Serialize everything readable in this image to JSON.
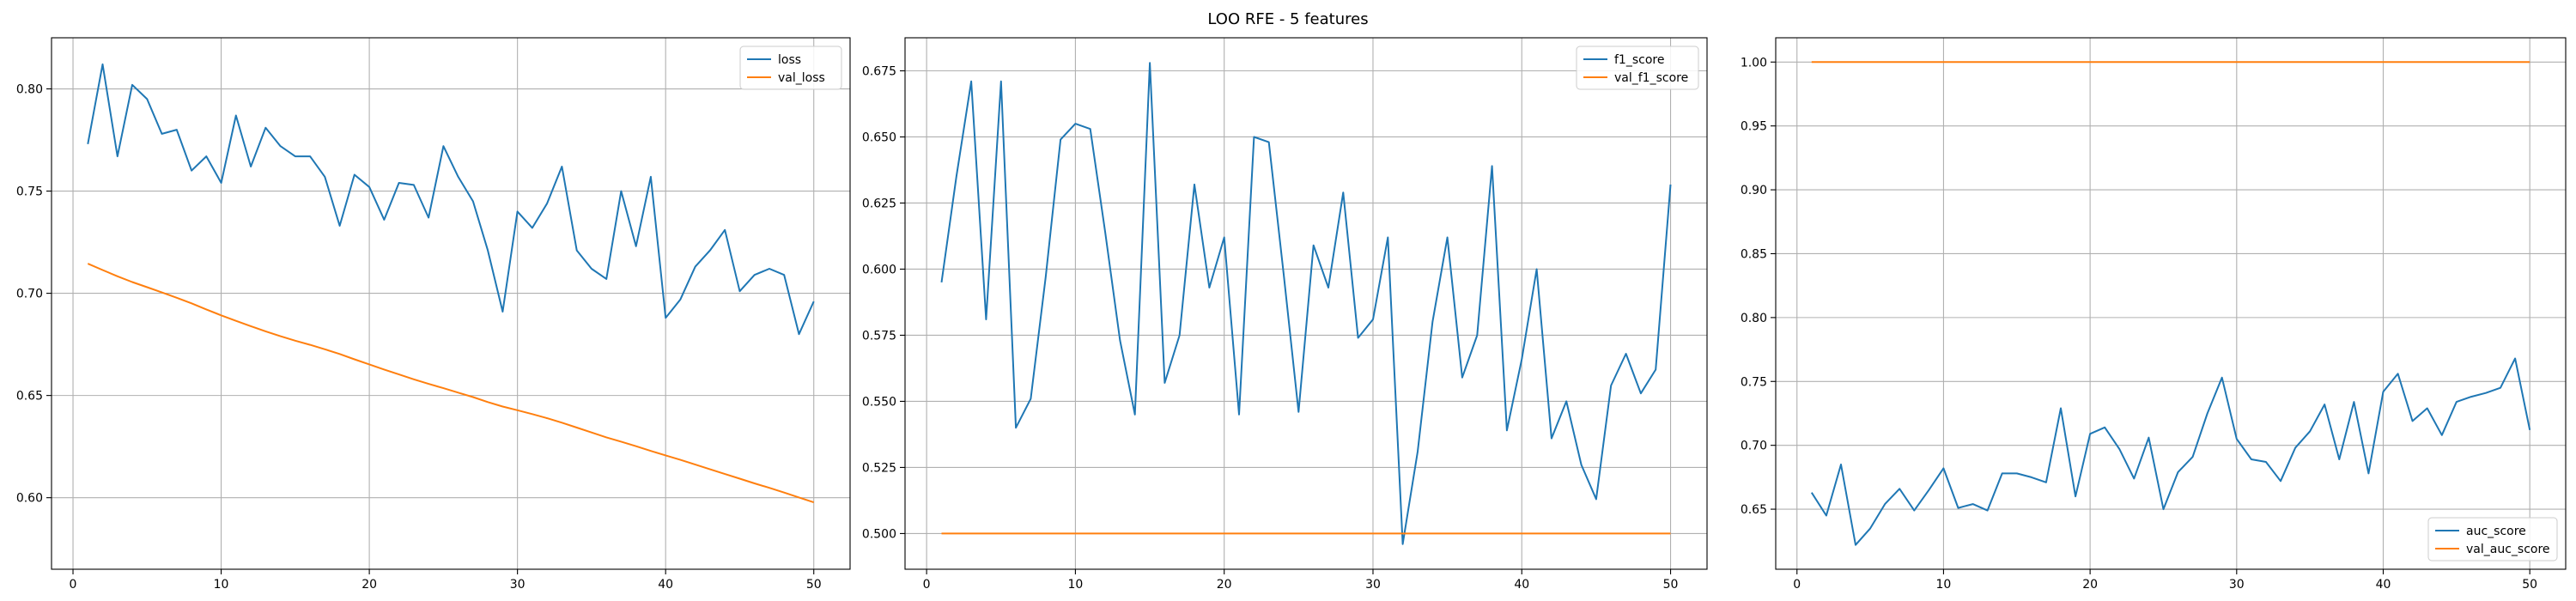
{
  "figure": {
    "suptitle": "LOO RFE - 5 features"
  },
  "chart_data": [
    {
      "type": "line",
      "legend_position": "upper right",
      "grid": true,
      "xlim": [
        -1.45,
        52.45
      ],
      "ylim": [
        0.565,
        0.825
      ],
      "xticks": [
        0,
        10,
        20,
        30,
        40,
        50
      ],
      "yticks": [
        0.6,
        0.65,
        0.7,
        0.75,
        0.8
      ],
      "ytick_labels": [
        "0.60",
        "0.65",
        "0.70",
        "0.75",
        "0.80"
      ],
      "x": [
        1,
        2,
        3,
        4,
        5,
        6,
        7,
        8,
        9,
        10,
        11,
        12,
        13,
        14,
        15,
        16,
        17,
        18,
        19,
        20,
        21,
        22,
        23,
        24,
        25,
        26,
        27,
        28,
        29,
        30,
        31,
        32,
        33,
        34,
        35,
        36,
        37,
        38,
        39,
        40,
        41,
        42,
        43,
        44,
        45,
        46,
        47,
        48,
        49,
        50
      ],
      "series": [
        {
          "name": "loss",
          "color": "#1f77b4",
          "values": [
            0.773,
            0.812,
            0.767,
            0.802,
            0.795,
            0.778,
            0.78,
            0.76,
            0.767,
            0.754,
            0.787,
            0.762,
            0.781,
            0.772,
            0.767,
            0.767,
            0.757,
            0.733,
            0.758,
            0.752,
            0.736,
            0.754,
            0.753,
            0.737,
            0.772,
            0.757,
            0.745,
            0.721,
            0.691,
            0.74,
            0.732,
            0.744,
            0.762,
            0.721,
            0.712,
            0.707,
            0.75,
            0.723,
            0.757,
            0.688,
            0.697,
            0.713,
            0.721,
            0.731,
            0.701,
            0.709,
            0.712,
            0.709,
            0.68,
            0.696
          ]
        },
        {
          "name": "val_loss",
          "color": "#ff7f0e",
          "values": [
            0.7145,
            0.7114,
            0.7083,
            0.7055,
            0.703,
            0.7004,
            0.6978,
            0.6951,
            0.6921,
            0.6892,
            0.6865,
            0.6839,
            0.6814,
            0.679,
            0.6768,
            0.6748,
            0.6726,
            0.6703,
            0.6677,
            0.6652,
            0.6627,
            0.6603,
            0.6579,
            0.6557,
            0.6536,
            0.6514,
            0.6492,
            0.6468,
            0.6446,
            0.6428,
            0.6409,
            0.6389,
            0.6367,
            0.6343,
            0.6319,
            0.6295,
            0.6274,
            0.6252,
            0.6229,
            0.6207,
            0.6185,
            0.6162,
            0.6139,
            0.6116,
            0.6093,
            0.607,
            0.6048,
            0.6025,
            0.6001,
            0.5977
          ]
        }
      ]
    },
    {
      "type": "line",
      "legend_position": "upper right",
      "grid": true,
      "xlim": [
        -1.45,
        52.45
      ],
      "ylim": [
        0.4865,
        0.6875
      ],
      "xticks": [
        0,
        10,
        20,
        30,
        40,
        50
      ],
      "yticks": [
        0.5,
        0.525,
        0.55,
        0.575,
        0.6,
        0.625,
        0.65,
        0.675
      ],
      "ytick_labels": [
        "0.500",
        "0.525",
        "0.550",
        "0.575",
        "0.600",
        "0.625",
        "0.650",
        "0.675"
      ],
      "x": [
        1,
        2,
        3,
        4,
        5,
        6,
        7,
        8,
        9,
        10,
        11,
        12,
        13,
        14,
        15,
        16,
        17,
        18,
        19,
        20,
        21,
        22,
        23,
        24,
        25,
        26,
        27,
        28,
        29,
        30,
        31,
        32,
        33,
        34,
        35,
        36,
        37,
        38,
        39,
        40,
        41,
        42,
        43,
        44,
        45,
        46,
        47,
        48,
        49,
        50
      ],
      "series": [
        {
          "name": "f1_score",
          "color": "#1f77b4",
          "values": [
            0.595,
            0.635,
            0.671,
            0.581,
            0.671,
            0.54,
            0.551,
            0.597,
            0.649,
            0.655,
            0.653,
            0.614,
            0.573,
            0.545,
            0.678,
            0.557,
            0.575,
            0.632,
            0.593,
            0.612,
            0.545,
            0.65,
            0.648,
            0.598,
            0.546,
            0.609,
            0.593,
            0.629,
            0.574,
            0.581,
            0.612,
            0.496,
            0.531,
            0.58,
            0.612,
            0.559,
            0.575,
            0.639,
            0.539,
            0.566,
            0.6,
            0.536,
            0.55,
            0.526,
            0.513,
            0.556,
            0.568,
            0.553,
            0.562,
            0.632
          ]
        },
        {
          "name": "val_f1_score",
          "color": "#ff7f0e",
          "values": [
            0.5,
            0.5,
            0.5,
            0.5,
            0.5,
            0.5,
            0.5,
            0.5,
            0.5,
            0.5,
            0.5,
            0.5,
            0.5,
            0.5,
            0.5,
            0.5,
            0.5,
            0.5,
            0.5,
            0.5,
            0.5,
            0.5,
            0.5,
            0.5,
            0.5,
            0.5,
            0.5,
            0.5,
            0.5,
            0.5,
            0.5,
            0.5,
            0.5,
            0.5,
            0.5,
            0.5,
            0.5,
            0.5,
            0.5,
            0.5,
            0.5,
            0.5,
            0.5,
            0.5,
            0.5,
            0.5,
            0.5,
            0.5,
            0.5,
            0.5
          ]
        }
      ]
    },
    {
      "type": "line",
      "legend_position": "lower right",
      "grid": true,
      "xlim": [
        -1.45,
        52.45
      ],
      "ylim": [
        0.603,
        1.019
      ],
      "xticks": [
        0,
        10,
        20,
        30,
        40,
        50
      ],
      "yticks": [
        0.65,
        0.7,
        0.75,
        0.8,
        0.85,
        0.9,
        0.95,
        1.0
      ],
      "ytick_labels": [
        "0.65",
        "0.70",
        "0.75",
        "0.80",
        "0.85",
        "0.90",
        "0.95",
        "1.00"
      ],
      "x": [
        1,
        2,
        3,
        4,
        5,
        6,
        7,
        8,
        9,
        10,
        11,
        12,
        13,
        14,
        15,
        16,
        17,
        18,
        19,
        20,
        21,
        22,
        23,
        24,
        25,
        26,
        27,
        28,
        29,
        30,
        31,
        32,
        33,
        34,
        35,
        36,
        37,
        38,
        39,
        40,
        41,
        42,
        43,
        44,
        45,
        46,
        47,
        48,
        49,
        50
      ],
      "series": [
        {
          "name": "auc_score",
          "color": "#1f77b4",
          "values": [
            0.663,
            0.645,
            0.685,
            0.622,
            0.635,
            0.654,
            0.666,
            0.649,
            0.665,
            0.682,
            0.651,
            0.654,
            0.649,
            0.678,
            0.678,
            0.675,
            0.671,
            0.729,
            0.66,
            0.709,
            0.714,
            0.697,
            0.674,
            0.706,
            0.65,
            0.679,
            0.691,
            0.725,
            0.753,
            0.705,
            0.689,
            0.687,
            0.672,
            0.698,
            0.711,
            0.732,
            0.689,
            0.734,
            0.678,
            0.742,
            0.756,
            0.719,
            0.729,
            0.708,
            0.734,
            0.738,
            0.741,
            0.745,
            0.768,
            0.712
          ]
        },
        {
          "name": "val_auc_score",
          "color": "#ff7f0e",
          "values": [
            1,
            1,
            1,
            1,
            1,
            1,
            1,
            1,
            1,
            1,
            1,
            1,
            1,
            1,
            1,
            1,
            1,
            1,
            1,
            1,
            1,
            1,
            1,
            1,
            1,
            1,
            1,
            1,
            1,
            1,
            1,
            1,
            1,
            1,
            1,
            1,
            1,
            1,
            1,
            1,
            1,
            1,
            1,
            1,
            1,
            1,
            1,
            1,
            1,
            1
          ]
        }
      ]
    }
  ]
}
